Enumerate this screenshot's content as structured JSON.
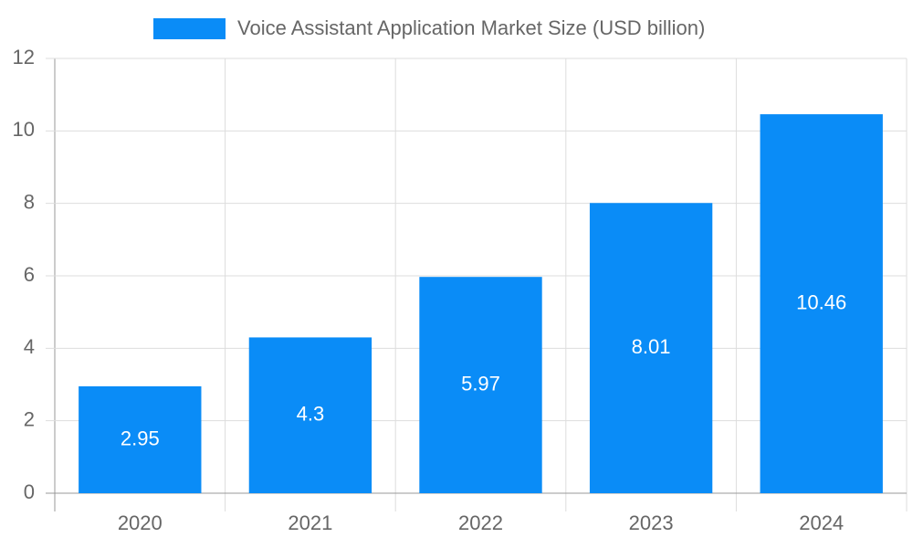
{
  "chart_data": {
    "type": "bar",
    "categories": [
      "2020",
      "2021",
      "2022",
      "2023",
      "2024"
    ],
    "series": [
      {
        "name": "Voice Assistant Application Market Size (USD billion)",
        "color": "#0a8cf7",
        "values": [
          2.95,
          4.3,
          5.97,
          8.01,
          10.46
        ]
      }
    ],
    "ylim": [
      0,
      12
    ],
    "yticks": [
      0,
      2,
      4,
      6,
      8,
      10,
      12
    ],
    "grid": true,
    "legend": "top",
    "data_labels": true
  }
}
